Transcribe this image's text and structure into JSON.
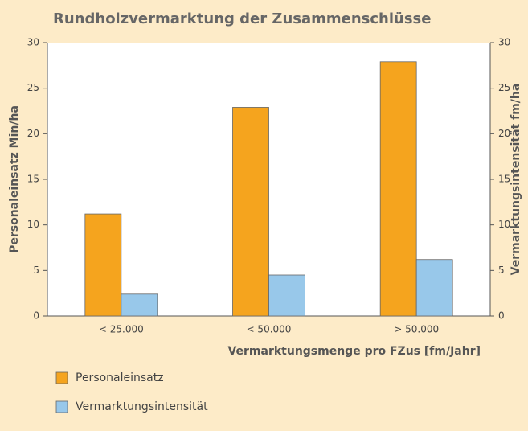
{
  "chart_data": {
    "type": "bar",
    "title": "Rundholzvermarktung der Zusammenschlüsse",
    "xlabel": "Vermarktungsmenge pro FZus [fm/Jahr]",
    "ylabel": "Personaleinsatz Min/ha",
    "y2label": "Vermarktungsintensität fm/ha",
    "categories": [
      "< 25.000",
      "< 50.000",
      "> 50.000"
    ],
    "series": [
      {
        "name": "Personaleinsatz",
        "color": "#f5a41e",
        "values": [
          11.2,
          22.9,
          27.9
        ]
      },
      {
        "name": "Vermarktungsintensität",
        "color": "#98c8ea",
        "values": [
          2.4,
          4.5,
          6.2
        ],
        "axis": "y2"
      }
    ],
    "ylim": [
      0,
      30
    ],
    "yticks": [
      0,
      5,
      10,
      15,
      20,
      25,
      30
    ],
    "y2lim": [
      0,
      30
    ],
    "y2ticks": [
      0,
      5,
      10,
      15,
      20,
      25,
      30
    ],
    "grid": false,
    "legend": "bottom-left"
  }
}
